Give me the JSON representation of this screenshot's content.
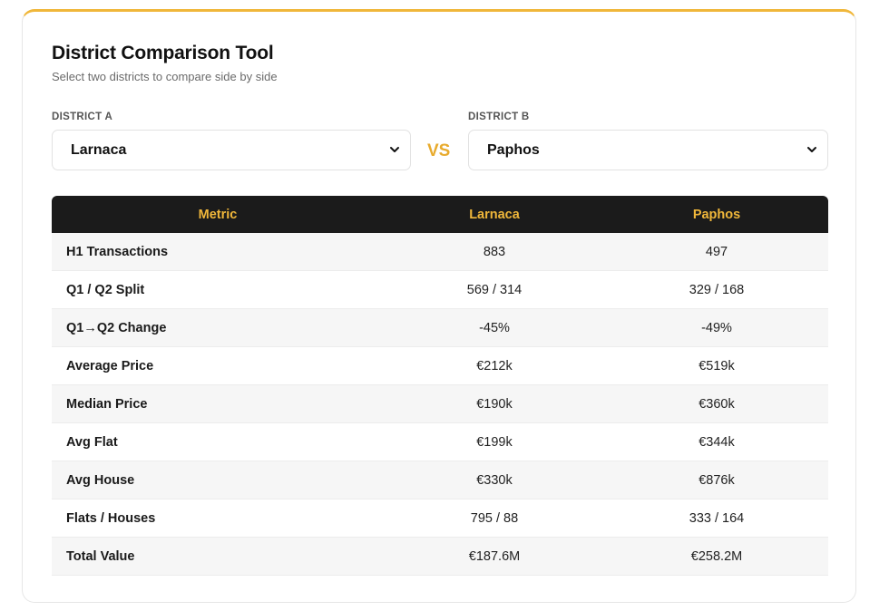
{
  "header": {
    "title": "District Comparison Tool",
    "subtitle": "Select two districts to compare side by side"
  },
  "district_a": {
    "label": "DISTRICT A",
    "value": "Larnaca"
  },
  "district_b": {
    "label": "DISTRICT B",
    "value": "Paphos"
  },
  "vs_label": "VS",
  "colors": {
    "accent": "#f0b73a",
    "header_bg": "#1b1b1b"
  },
  "icons": {
    "select_chevron": "chevron-down-icon"
  },
  "table": {
    "headers": [
      "Metric",
      "Larnaca",
      "Paphos"
    ],
    "rows": [
      {
        "metric": "H1 Transactions",
        "a": "883",
        "b": "497"
      },
      {
        "metric": "Q1 / Q2 Split",
        "a": "569 / 314",
        "b": "329 / 168"
      },
      {
        "metric": "Q1→Q2 Change",
        "a": "-45%",
        "b": "-49%"
      },
      {
        "metric": "Average Price",
        "a": "€212k",
        "b": "€519k"
      },
      {
        "metric": "Median Price",
        "a": "€190k",
        "b": "€360k"
      },
      {
        "metric": "Avg Flat",
        "a": "€199k",
        "b": "€344k"
      },
      {
        "metric": "Avg House",
        "a": "€330k",
        "b": "€876k"
      },
      {
        "metric": "Flats / Houses",
        "a": "795 / 88",
        "b": "333 / 164"
      },
      {
        "metric": "Total Value",
        "a": "€187.6M",
        "b": "€258.2M"
      }
    ]
  }
}
